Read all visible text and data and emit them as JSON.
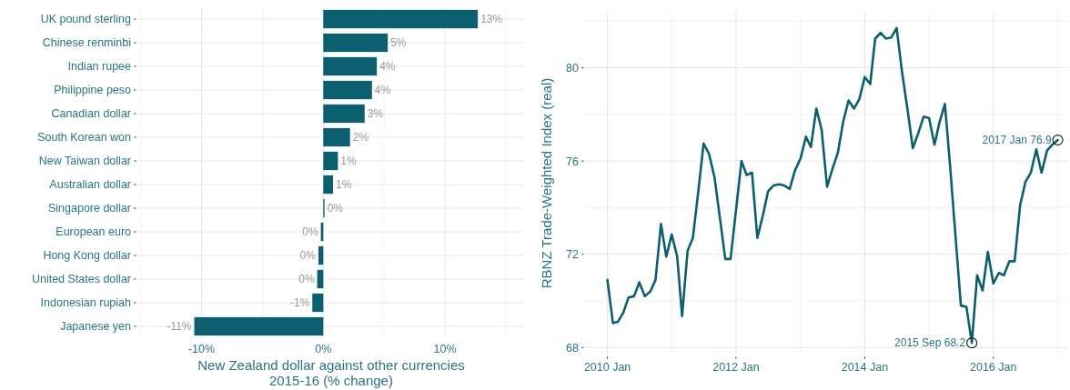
{
  "chart_data": [
    {
      "type": "bar",
      "orientation": "horizontal",
      "xlabel": "New Zealand dollar against other currencies\n2015-16 (% change)",
      "categories": [
        "UK pound sterling",
        "Chinese renminbi",
        "Indian rupee",
        "Philippine peso",
        "Canadian dollar",
        "South Korean won",
        "New Taiwan dollar",
        "Australian dollar",
        "Singapore dollar",
        "European euro",
        "Hong Kong dollar",
        "United States dollar",
        "Indonesian rupiah",
        "Japanese yen"
      ],
      "values": [
        12.7,
        5.3,
        4.4,
        4.0,
        3.4,
        2.2,
        1.2,
        0.8,
        0.1,
        -0.2,
        -0.4,
        -0.5,
        -0.9,
        -10.6
      ],
      "value_labels": [
        "13%",
        "5%",
        "4%",
        "4%",
        "3%",
        "2%",
        "1%",
        "1%",
        "0%",
        "0%",
        "0%",
        "0%",
        "-1%",
        "-11%"
      ],
      "color": "#0b5f6e",
      "xlim": [
        -15.2,
        16.5
      ],
      "xticks": [
        {
          "value": -10,
          "label": "-10%"
        },
        {
          "value": 0,
          "label": "0%"
        },
        {
          "value": 10,
          "label": "10%"
        }
      ],
      "grid": true
    },
    {
      "type": "line",
      "ylabel": "RBNZ Trade-Weighted Index (real)",
      "color": "#0b5f6e",
      "x": [
        "2010-01",
        "2010-02",
        "2010-03",
        "2010-04",
        "2010-05",
        "2010-06",
        "2010-07",
        "2010-08",
        "2010-09",
        "2010-10",
        "2010-11",
        "2010-12",
        "2011-01",
        "2011-02",
        "2011-03",
        "2011-04",
        "2011-05",
        "2011-06",
        "2011-07",
        "2011-08",
        "2011-09",
        "2011-10",
        "2011-11",
        "2011-12",
        "2012-01",
        "2012-02",
        "2012-03",
        "2012-04",
        "2012-05",
        "2012-06",
        "2012-07",
        "2012-08",
        "2012-09",
        "2012-10",
        "2012-11",
        "2012-12",
        "2013-01",
        "2013-02",
        "2013-03",
        "2013-04",
        "2013-05",
        "2013-06",
        "2013-07",
        "2013-08",
        "2013-09",
        "2013-10",
        "2013-11",
        "2013-12",
        "2014-01",
        "2014-02",
        "2014-03",
        "2014-04",
        "2014-05",
        "2014-06",
        "2014-07",
        "2014-08",
        "2014-09",
        "2014-10",
        "2014-11",
        "2014-12",
        "2015-01",
        "2015-02",
        "2015-03",
        "2015-04",
        "2015-05",
        "2015-06",
        "2015-07",
        "2015-08",
        "2015-09",
        "2015-10",
        "2015-11",
        "2015-12",
        "2016-01",
        "2016-02",
        "2016-03",
        "2016-04",
        "2016-05",
        "2016-06",
        "2016-07",
        "2016-08",
        "2016-09",
        "2016-10",
        "2016-11",
        "2016-12",
        "2017-01"
      ],
      "values": [
        70.9,
        69.05,
        69.1,
        69.5,
        70.15,
        70.2,
        70.8,
        70.2,
        70.4,
        70.9,
        73.3,
        71.9,
        72.85,
        71.9,
        69.35,
        72.15,
        72.7,
        74.7,
        76.75,
        76.3,
        75.3,
        73.6,
        71.8,
        71.8,
        73.9,
        76.0,
        75.4,
        75.5,
        72.7,
        73.65,
        74.7,
        74.95,
        75.0,
        74.95,
        74.8,
        75.6,
        76.1,
        77.05,
        76.6,
        78.25,
        77.35,
        74.9,
        75.65,
        76.35,
        77.7,
        78.6,
        78.25,
        78.65,
        79.6,
        79.3,
        81.25,
        81.5,
        81.25,
        81.3,
        81.7,
        79.8,
        78.2,
        76.55,
        77.2,
        77.9,
        77.85,
        76.7,
        77.65,
        78.45,
        75.75,
        72.7,
        69.8,
        69.75,
        68.2,
        71.1,
        70.45,
        72.1,
        70.75,
        71.2,
        71.1,
        71.7,
        71.7,
        74.1,
        75.1,
        75.5,
        76.5,
        75.5,
        76.45,
        76.7,
        76.9
      ],
      "xlim": [
        "2009-09",
        "2017-03"
      ],
      "xticks": [
        {
          "value": "2010-01",
          "label": "2010 Jan"
        },
        {
          "value": "2012-01",
          "label": "2012 Jan"
        },
        {
          "value": "2014-01",
          "label": "2014 Jan"
        },
        {
          "value": "2016-01",
          "label": "2016 Jan"
        }
      ],
      "ylim": [
        67.7,
        82.4
      ],
      "yticks": [
        68,
        72,
        76,
        80
      ],
      "grid": true,
      "annotations": [
        {
          "text": "2015 Sep 68.2",
          "x": "2015-09",
          "y": 68.2
        },
        {
          "text": "2017 Jan 76.9",
          "x": "2017-01",
          "y": 76.9
        }
      ]
    }
  ]
}
